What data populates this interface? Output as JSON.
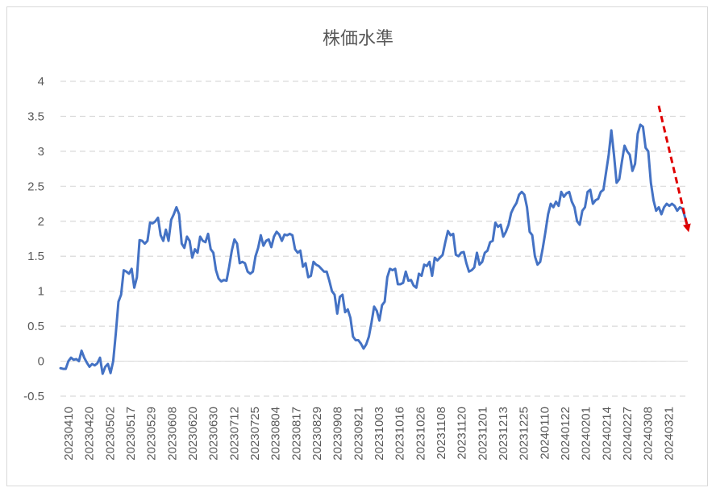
{
  "chart_data": {
    "type": "line",
    "title": "株価水準",
    "xlabel": "",
    "ylabel": "",
    "ylim": [
      -0.5,
      4
    ],
    "yticks": [
      "4",
      "3.5",
      "3",
      "2.5",
      "2",
      "1.5",
      "1",
      "0.5",
      "0",
      "-0.5"
    ],
    "grid": true,
    "legend": "none",
    "xtick_labels": [
      "20230410",
      "20230420",
      "20230502",
      "20230517",
      "20230529",
      "20230608",
      "20230620",
      "20230630",
      "20230712",
      "20230725",
      "20230804",
      "20230817",
      "20230829",
      "20230908",
      "20230921",
      "20231003",
      "20231016",
      "20231026",
      "20231108",
      "20231120",
      "20231201",
      "20231213",
      "20231225",
      "20240110",
      "20240122",
      "20240201",
      "20240214",
      "20240227",
      "20240308",
      "20240321"
    ],
    "series": [
      {
        "color": "#4472c4",
        "values": [
          -0.1,
          -0.11,
          -0.11,
          0.0,
          0.05,
          0.02,
          0.03,
          0.0,
          0.15,
          0.05,
          -0.02,
          -0.08,
          -0.04,
          -0.06,
          -0.03,
          0.05,
          -0.18,
          -0.08,
          -0.04,
          -0.17,
          0.0,
          0.4,
          0.85,
          0.95,
          1.3,
          1.28,
          1.25,
          1.32,
          1.05,
          1.2,
          1.73,
          1.72,
          1.68,
          1.72,
          1.98,
          1.97,
          2.0,
          2.05,
          1.8,
          1.72,
          1.88,
          1.72,
          2.02,
          2.1,
          2.2,
          2.1,
          1.68,
          1.62,
          1.78,
          1.72,
          1.48,
          1.6,
          1.55,
          1.78,
          1.72,
          1.7,
          1.82,
          1.6,
          1.55,
          1.3,
          1.18,
          1.14,
          1.16,
          1.15,
          1.35,
          1.58,
          1.74,
          1.68,
          1.4,
          1.42,
          1.4,
          1.28,
          1.25,
          1.28,
          1.5,
          1.62,
          1.8,
          1.65,
          1.72,
          1.74,
          1.63,
          1.78,
          1.85,
          1.81,
          1.72,
          1.81,
          1.8,
          1.82,
          1.8,
          1.6,
          1.55,
          1.58,
          1.35,
          1.4,
          1.2,
          1.22,
          1.42,
          1.38,
          1.36,
          1.32,
          1.28,
          1.28,
          1.15,
          1.0,
          0.95,
          0.68,
          0.92,
          0.95,
          0.7,
          0.74,
          0.62,
          0.35,
          0.3,
          0.3,
          0.25,
          0.18,
          0.24,
          0.35,
          0.55,
          0.78,
          0.72,
          0.58,
          0.8,
          0.85,
          1.2,
          1.32,
          1.3,
          1.32,
          1.1,
          1.1,
          1.12,
          1.28,
          1.15,
          1.16,
          1.08,
          1.05,
          1.25,
          1.22,
          1.38,
          1.36,
          1.42,
          1.22,
          1.48,
          1.44,
          1.48,
          1.52,
          1.7,
          1.86,
          1.8,
          1.82,
          1.52,
          1.5,
          1.55,
          1.56,
          1.4,
          1.28,
          1.3,
          1.34,
          1.55,
          1.38,
          1.42,
          1.55,
          1.58,
          1.7,
          1.72,
          1.98,
          1.92,
          1.95,
          1.78,
          1.85,
          1.95,
          2.12,
          2.2,
          2.26,
          2.38,
          2.42,
          2.38,
          2.2,
          1.85,
          1.8,
          1.5,
          1.38,
          1.42,
          1.62,
          1.85,
          2.1,
          2.25,
          2.2,
          2.28,
          2.22,
          2.42,
          2.35,
          2.4,
          2.42,
          2.28,
          2.2,
          2.0,
          1.95,
          2.15,
          2.2,
          2.42,
          2.45,
          2.25,
          2.3,
          2.32,
          2.42,
          2.45,
          2.7,
          2.95,
          3.3,
          2.95,
          2.55,
          2.6,
          2.85,
          3.08,
          3.0,
          2.95,
          2.72,
          2.82,
          3.25,
          3.38,
          3.35,
          3.05,
          3.0,
          2.55,
          2.3,
          2.15,
          2.2,
          2.1,
          2.2,
          2.25,
          2.22,
          2.25,
          2.22,
          2.15,
          2.2,
          2.18,
          2.05,
          1.92
        ]
      }
    ],
    "annotation": {
      "type": "dashed-arrow",
      "color": "#e00000",
      "from": {
        "x_index": 227,
        "y": 3.65
      },
      "to": {
        "x_index": 238,
        "y": 1.9
      }
    }
  }
}
